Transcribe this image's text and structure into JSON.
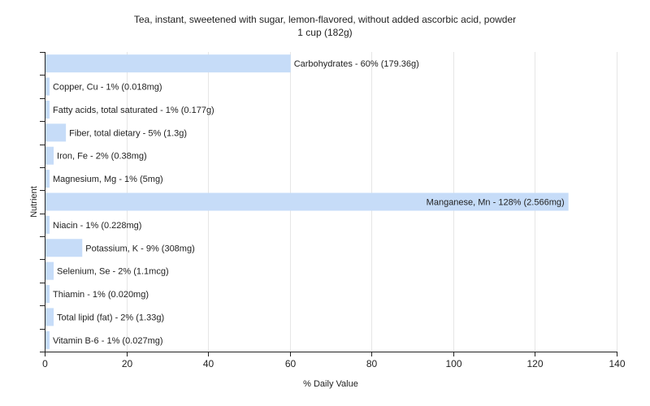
{
  "chart_data": {
    "type": "bar",
    "orientation": "horizontal",
    "title": "Tea, instant, sweetened with sugar, lemon-flavored, without added ascorbic acid, powder",
    "subtitle": "1 cup (182g)",
    "xlabel": "% Daily Value",
    "ylabel": "Nutrient",
    "xlim": [
      0,
      140
    ],
    "xticks": [
      0,
      20,
      40,
      60,
      80,
      100,
      120,
      140
    ],
    "grid": true,
    "bar_color": "#c6dcf8",
    "categories": [
      "Carbohydrates",
      "Copper, Cu",
      "Fatty acids, total saturated",
      "Fiber, total dietary",
      "Iron, Fe",
      "Magnesium, Mg",
      "Manganese, Mn",
      "Niacin",
      "Potassium, K",
      "Selenium, Se",
      "Thiamin",
      "Total lipid (fat)",
      "Vitamin B-6"
    ],
    "values": [
      60,
      1,
      1,
      5,
      2,
      1,
      128,
      1,
      9,
      2,
      1,
      2,
      1
    ],
    "labels": [
      "Carbohydrates - 60% (179.36g)",
      "Copper, Cu - 1% (0.018mg)",
      "Fatty acids, total saturated - 1% (0.177g)",
      "Fiber, total dietary - 5% (1.3g)",
      "Iron, Fe - 2% (0.38mg)",
      "Magnesium, Mg - 1% (5mg)",
      "Manganese, Mn - 128% (2.566mg)",
      "Niacin - 1% (0.228mg)",
      "Potassium, K - 9% (308mg)",
      "Selenium, Se - 2% (1.1mcg)",
      "Thiamin - 1% (0.020mg)",
      "Total lipid (fat) - 2% (1.33g)",
      "Vitamin B-6 - 1% (0.027mg)"
    ]
  }
}
